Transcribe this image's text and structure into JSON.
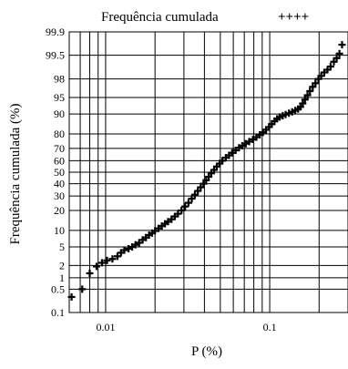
{
  "chart_data": {
    "type": "scatter",
    "title": "",
    "legend": {
      "label": "Frequência cumulada",
      "marker": "++++",
      "placement": "top"
    },
    "xlabel": "P (%)",
    "ylabel": "Frequência cumulada (%)",
    "x_scale": "log",
    "y_scale": "normal-probability",
    "xlim": [
      0.006,
      0.3
    ],
    "ylim": [
      0.1,
      99.9
    ],
    "x_tick_labels": [
      "0.01",
      "0.1"
    ],
    "x_tick_values": [
      0.01,
      0.1
    ],
    "y_tick_labels": [
      "0.1",
      "0.5",
      "1",
      "2",
      "5",
      "10",
      "20",
      "30",
      "40",
      "50",
      "60",
      "70",
      "80",
      "90",
      "95",
      "98",
      "99.5",
      "99.9"
    ],
    "y_tick_values": [
      0.1,
      0.5,
      1,
      2,
      5,
      10,
      20,
      30,
      40,
      50,
      60,
      70,
      80,
      90,
      95,
      98,
      99.5,
      99.9
    ],
    "grid": true,
    "marker_color": "#000000",
    "series": [
      {
        "points": [
          [
            0.0062,
            0.3
          ],
          [
            0.0072,
            0.5
          ],
          [
            0.008,
            1.3
          ],
          [
            0.0088,
            1.9
          ],
          [
            0.0095,
            2.3
          ],
          [
            0.0102,
            2.6
          ],
          [
            0.011,
            2.8
          ],
          [
            0.0118,
            3.2
          ],
          [
            0.0124,
            3.8
          ],
          [
            0.013,
            4.3
          ],
          [
            0.0138,
            4.6
          ],
          [
            0.0145,
            5.0
          ],
          [
            0.0152,
            5.5
          ],
          [
            0.016,
            6.0
          ],
          [
            0.0168,
            6.8
          ],
          [
            0.0176,
            7.5
          ],
          [
            0.0184,
            8.3
          ],
          [
            0.0192,
            9.0
          ],
          [
            0.02,
            9.8
          ],
          [
            0.021,
            10.8
          ],
          [
            0.022,
            11.8
          ],
          [
            0.023,
            12.8
          ],
          [
            0.024,
            13.8
          ],
          [
            0.0252,
            15.0
          ],
          [
            0.0264,
            16.5
          ],
          [
            0.0276,
            18.0
          ],
          [
            0.029,
            20.0
          ],
          [
            0.0305,
            22.5
          ],
          [
            0.032,
            25.0
          ],
          [
            0.0335,
            28.0
          ],
          [
            0.035,
            31.0
          ],
          [
            0.0365,
            34.0
          ],
          [
            0.038,
            37.0
          ],
          [
            0.0395,
            40.0
          ],
          [
            0.041,
            43.0
          ],
          [
            0.0425,
            46.0
          ],
          [
            0.044,
            49.0
          ],
          [
            0.0458,
            52.0
          ],
          [
            0.0476,
            55.0
          ],
          [
            0.0495,
            57.5
          ],
          [
            0.0515,
            60.0
          ],
          [
            0.054,
            62.5
          ],
          [
            0.0565,
            64.5
          ],
          [
            0.059,
            66.5
          ],
          [
            0.062,
            68.5
          ],
          [
            0.065,
            70.5
          ],
          [
            0.068,
            72.0
          ],
          [
            0.0715,
            73.5
          ],
          [
            0.075,
            75.0
          ],
          [
            0.079,
            76.5
          ],
          [
            0.083,
            78.0
          ],
          [
            0.087,
            79.5
          ],
          [
            0.091,
            81.0
          ],
          [
            0.095,
            82.5
          ],
          [
            0.099,
            84.0
          ],
          [
            0.103,
            85.5
          ],
          [
            0.107,
            87.0
          ],
          [
            0.111,
            88.0
          ],
          [
            0.115,
            88.8
          ],
          [
            0.12,
            89.3
          ],
          [
            0.125,
            89.8
          ],
          [
            0.131,
            90.3
          ],
          [
            0.137,
            90.8
          ],
          [
            0.143,
            91.3
          ],
          [
            0.149,
            91.8
          ],
          [
            0.154,
            92.5
          ],
          [
            0.159,
            93.5
          ],
          [
            0.164,
            94.5
          ],
          [
            0.17,
            95.5
          ],
          [
            0.176,
            96.3
          ],
          [
            0.183,
            97.0
          ],
          [
            0.19,
            97.5
          ],
          [
            0.198,
            98.0
          ],
          [
            0.206,
            98.3
          ],
          [
            0.215,
            98.6
          ],
          [
            0.225,
            98.8
          ],
          [
            0.235,
            99.0
          ],
          [
            0.246,
            99.25
          ],
          [
            0.256,
            99.4
          ],
          [
            0.266,
            99.55
          ],
          [
            0.276,
            99.75
          ]
        ]
      }
    ]
  }
}
